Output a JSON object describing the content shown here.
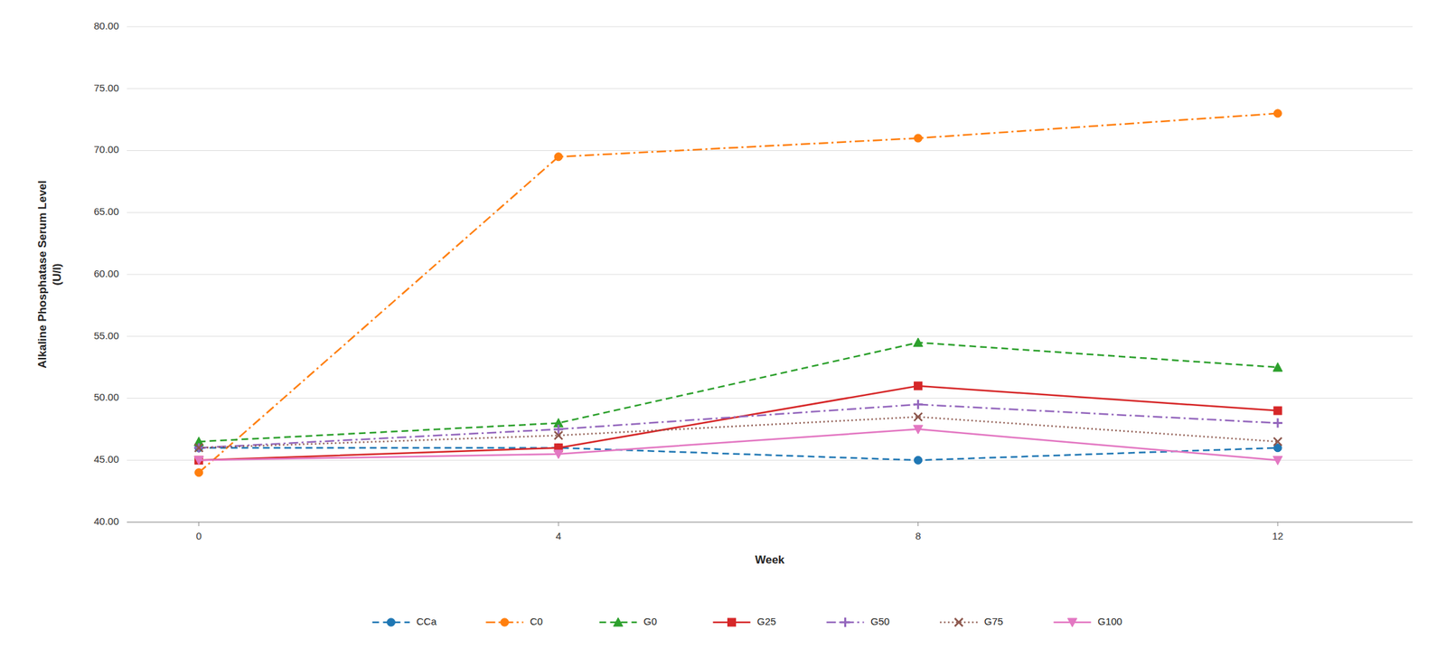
{
  "chart_data": {
    "type": "line",
    "x_label": "Week",
    "y_label": "Alkaline Phosphatase Serum Level\n(U/l)",
    "x": [
      0,
      4,
      8,
      12
    ],
    "series": [
      {
        "name": "CCa",
        "values": [
          46.0,
          46.0,
          45.0,
          46.0
        ],
        "marker": "circle",
        "line_style": "dashed"
      },
      {
        "name": "C0",
        "values": [
          44.0,
          69.5,
          71.0,
          73.0
        ],
        "marker": "circle",
        "line_style": "dashdot"
      },
      {
        "name": "G0",
        "values": [
          46.5,
          48.0,
          54.5,
          52.5
        ],
        "marker": "triangle",
        "line_style": "dashed"
      },
      {
        "name": "G25",
        "values": [
          45.0,
          46.0,
          51.0,
          49.0
        ],
        "marker": "square",
        "line_style": "solid"
      },
      {
        "name": "G50",
        "values": [
          46.0,
          47.5,
          49.5,
          48.0
        ],
        "marker": "plus",
        "line_style": "dashdot"
      },
      {
        "name": "G75",
        "values": [
          46.0,
          47.0,
          48.5,
          46.5
        ],
        "marker": "x",
        "line_style": "dotted"
      },
      {
        "name": "G100",
        "values": [
          45.0,
          45.5,
          47.5,
          45.0
        ],
        "marker": "triangle-down",
        "line_style": "solid"
      }
    ],
    "xlim": [
      -0.8,
      13.5
    ],
    "xticks": [
      0,
      4,
      8,
      12
    ],
    "ylim": [
      40.0,
      80.0
    ],
    "yticks": [
      {
        "value": 40.0,
        "label": "40.00"
      },
      {
        "value": 45.0,
        "label": "45.00"
      },
      {
        "value": 50.0,
        "label": "50.00"
      },
      {
        "value": 55.0,
        "label": "55.00"
      },
      {
        "value": 60.0,
        "label": "60.00"
      },
      {
        "value": 65.0,
        "label": "65.00"
      },
      {
        "value": 70.0,
        "label": "70.00"
      },
      {
        "value": 75.0,
        "label": "75.00"
      },
      {
        "value": 80.0,
        "label": "80.00"
      }
    ],
    "grid": true,
    "legend": "bottom"
  }
}
